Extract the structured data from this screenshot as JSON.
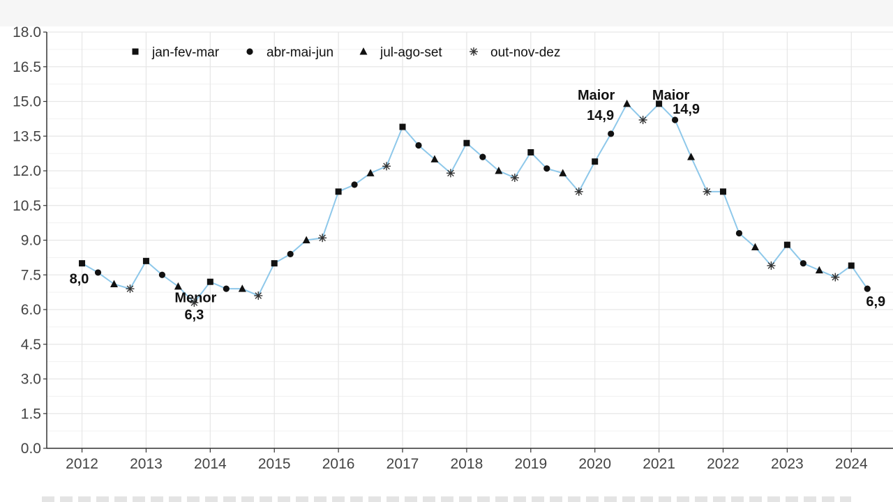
{
  "colors": {
    "line": "#8ec8ea",
    "marker": "#111111",
    "grid": "#e6e6e6",
    "axis": "#333333"
  },
  "chart_data": {
    "type": "line",
    "title": "",
    "xlabel": "",
    "ylabel": "",
    "xlim": [
      2011.45,
      2024.65
    ],
    "ylim": [
      0,
      18
    ],
    "grid": true,
    "legend_position": "top-left",
    "x_ticks": [
      2012,
      2013,
      2014,
      2015,
      2016,
      2017,
      2018,
      2019,
      2020,
      2021,
      2022,
      2023,
      2024
    ],
    "x_tick_labels": [
      "2012",
      "2013",
      "2014",
      "2015",
      "2016",
      "2017",
      "2018",
      "2019",
      "2020",
      "2021",
      "2022",
      "2023",
      "2024"
    ],
    "y_ticks": [
      0,
      1.5,
      3,
      4.5,
      6,
      7.5,
      9,
      10.5,
      12,
      13.5,
      15,
      16.5,
      18
    ],
    "y_tick_labels": [
      "0.0",
      "1.5",
      "3.0",
      "4.5",
      "6.0",
      "7.5",
      "9.0",
      "10.5",
      "12.0",
      "13.5",
      "15.0",
      "16.5",
      "18.0"
    ],
    "legend": [
      {
        "label": "jan-fev-mar",
        "marker": "square"
      },
      {
        "label": "abr-mai-jun",
        "marker": "circle"
      },
      {
        "label": "jul-ago-set",
        "marker": "triangle"
      },
      {
        "label": "out-nov-dez",
        "marker": "asterisk"
      }
    ],
    "quarters": [
      "jan-fev-mar",
      "abr-mai-jun",
      "jul-ago-set",
      "out-nov-dez"
    ],
    "start_year": 2012,
    "values": [
      8.0,
      7.6,
      7.1,
      6.9,
      8.1,
      7.5,
      7.0,
      6.3,
      7.2,
      6.9,
      6.9,
      6.6,
      8.0,
      8.4,
      9.0,
      9.1,
      11.1,
      11.4,
      11.9,
      12.2,
      13.9,
      13.1,
      12.5,
      11.9,
      13.2,
      12.6,
      12.0,
      11.7,
      12.8,
      12.1,
      11.9,
      11.1,
      12.4,
      13.6,
      14.9,
      14.2,
      14.9,
      14.2,
      12.6,
      11.1,
      11.1,
      9.3,
      8.7,
      7.9,
      8.8,
      8.0,
      7.7,
      7.4,
      7.9,
      6.9
    ],
    "annotations": [
      {
        "index": 0,
        "lines": [
          "8,0"
        ]
      },
      {
        "index": 7,
        "lines": [
          "Menor",
          "6,3"
        ]
      },
      {
        "index": 34,
        "lines": [
          "Maior",
          "14,9"
        ]
      },
      {
        "index": 36,
        "lines": [
          "Maior",
          "14,9"
        ]
      },
      {
        "index": 49,
        "lines": [
          "6,9"
        ]
      }
    ]
  }
}
